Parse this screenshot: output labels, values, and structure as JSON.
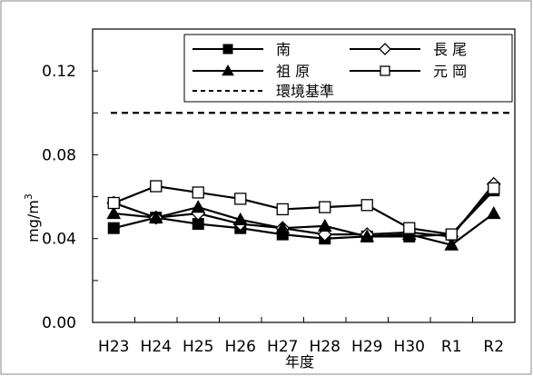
{
  "chart_data": {
    "type": "line",
    "categories": [
      "H23",
      "H24",
      "H25",
      "H26",
      "H27",
      "H28",
      "H29",
      "H30",
      "R1",
      "R2"
    ],
    "xlabel": "年度",
    "ylabel": "mg/m",
    "ylabel_superscript": "3",
    "ylim": [
      0,
      0.14
    ],
    "yticks": [
      0.0,
      0.04,
      0.08,
      0.12
    ],
    "ytick_labels": [
      "0.00",
      "0.04",
      "0.08",
      "0.12"
    ],
    "grid": false,
    "legend_position": "top-right",
    "series": [
      {
        "name": "南",
        "marker": "filled-square",
        "values": [
          0.045,
          0.05,
          0.047,
          0.045,
          0.042,
          0.04,
          0.041,
          0.041,
          0.042,
          0.063
        ]
      },
      {
        "name": "長 尾",
        "marker": "open-diamond",
        "values": [
          0.057,
          0.05,
          0.052,
          0.047,
          0.045,
          0.042,
          0.042,
          0.043,
          0.041,
          0.066
        ]
      },
      {
        "name": "祖 原",
        "marker": "filled-triangle",
        "values": [
          0.052,
          0.05,
          0.055,
          0.049,
          0.045,
          0.046,
          0.041,
          0.042,
          0.037,
          0.052
        ]
      },
      {
        "name": "元 岡",
        "marker": "open-square",
        "values": [
          0.057,
          0.065,
          0.062,
          0.059,
          0.054,
          0.055,
          0.056,
          0.045,
          0.042,
          0.064
        ]
      }
    ],
    "reference_line": {
      "name": "環境基準",
      "value": 0.1,
      "style": "dashed"
    }
  }
}
